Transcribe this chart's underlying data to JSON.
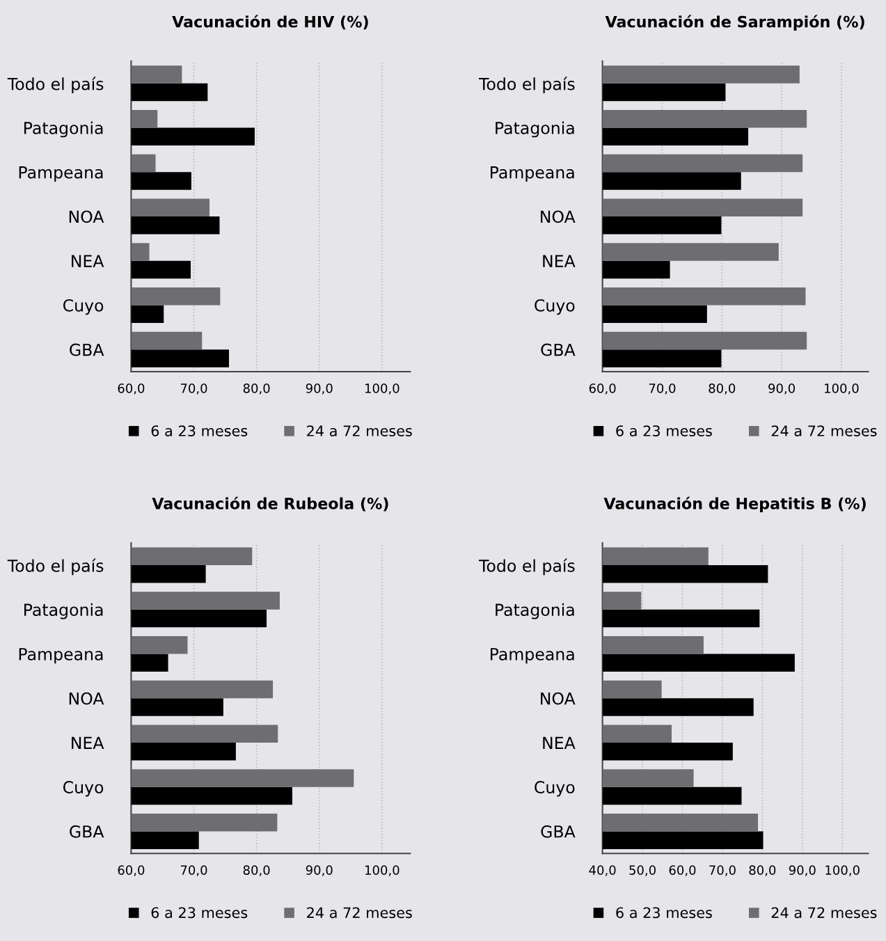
{
  "chart_data": [
    {
      "type": "bar",
      "orientation": "horizontal",
      "title": "Vacunación de HIV (%)",
      "categories": [
        "Todo el país",
        "Patagonia",
        "Pampeana",
        "NOA",
        "NEA",
        "Cuyo",
        "GBA"
      ],
      "series": [
        {
          "name": "6 a 23 meses",
          "color": "#000000",
          "values": [
            72.2,
            79.7,
            69.6,
            74.1,
            69.5,
            65.2,
            75.6
          ]
        },
        {
          "name": "24 a 72 meses",
          "color": "#6e6e72",
          "values": [
            68.1,
            64.2,
            63.9,
            72.5,
            62.9,
            74.2,
            71.3
          ]
        }
      ],
      "xlim": [
        60,
        104.5
      ],
      "xticks": [
        {
          "value": 60,
          "label": "60,0"
        },
        {
          "value": 70,
          "label": "70,0"
        },
        {
          "value": 80,
          "label": "80,0"
        },
        {
          "value": 90,
          "label": "90,0"
        },
        {
          "value": 100,
          "label": "100,0"
        }
      ],
      "grid": "x",
      "legend": "bottom"
    },
    {
      "type": "bar",
      "orientation": "horizontal",
      "title": "Vacunación de Sarampión (%)",
      "categories": [
        "Todo el país",
        "Patagonia",
        "Pampeana",
        "NOA",
        "NEA",
        "Cuyo",
        "GBA"
      ],
      "series": [
        {
          "name": "6 a 23 meses",
          "color": "#000000",
          "values": [
            80.6,
            84.4,
            83.2,
            79.9,
            71.3,
            77.5,
            79.9
          ]
        },
        {
          "name": "24 a 72 meses",
          "color": "#6e6e72",
          "values": [
            93.0,
            94.2,
            93.5,
            93.5,
            89.5,
            94.0,
            94.2
          ]
        }
      ],
      "xlim": [
        60,
        104.5
      ],
      "xticks": [
        {
          "value": 60,
          "label": "60,0"
        },
        {
          "value": 70,
          "label": "70,0"
        },
        {
          "value": 80,
          "label": "80,0"
        },
        {
          "value": 90,
          "label": "90,0"
        },
        {
          "value": 100,
          "label": "100,0"
        }
      ],
      "grid": "x",
      "legend": "bottom"
    },
    {
      "type": "bar",
      "orientation": "horizontal",
      "title": "Vacunación de Rubeola (%)",
      "categories": [
        "Todo el país",
        "Patagonia",
        "Pampeana",
        "NOA",
        "NEA",
        "Cuyo",
        "GBA"
      ],
      "series": [
        {
          "name": "6 a 23 meses",
          "color": "#000000",
          "values": [
            71.9,
            81.6,
            65.9,
            74.7,
            76.7,
            85.7,
            70.8
          ]
        },
        {
          "name": "24 a 72 meses",
          "color": "#6e6e72",
          "values": [
            79.3,
            83.7,
            69.0,
            82.6,
            83.4,
            95.5,
            83.3
          ]
        }
      ],
      "xlim": [
        60,
        104.5
      ],
      "xticks": [
        {
          "value": 60,
          "label": "60,0"
        },
        {
          "value": 70,
          "label": "70,0"
        },
        {
          "value": 80,
          "label": "80,0"
        },
        {
          "value": 90,
          "label": "90,0"
        },
        {
          "value": 100,
          "label": "100,0"
        }
      ],
      "grid": "x",
      "legend": "bottom"
    },
    {
      "type": "bar",
      "orientation": "horizontal",
      "title": "Vacunación de Hepatitis B (%)",
      "categories": [
        "Todo el país",
        "Patagonia",
        "Pampeana",
        "NOA",
        "NEA",
        "Cuyo",
        "GBA"
      ],
      "series": [
        {
          "name": "6 a 23 meses",
          "color": "#000000",
          "values": [
            81.4,
            79.3,
            88.1,
            77.8,
            72.6,
            74.8,
            80.2
          ]
        },
        {
          "name": "24 a 72 meses",
          "color": "#6e6e72",
          "values": [
            66.5,
            49.7,
            65.3,
            54.8,
            57.3,
            62.8,
            78.9
          ]
        }
      ],
      "xlim": [
        40,
        106.5
      ],
      "xticks": [
        {
          "value": 40,
          "label": "40,0"
        },
        {
          "value": 50,
          "label": "50,0"
        },
        {
          "value": 60,
          "label": "60,0"
        },
        {
          "value": 70,
          "label": "70,0"
        },
        {
          "value": 80,
          "label": "80,0"
        },
        {
          "value": 90,
          "label": "90,0"
        },
        {
          "value": 100,
          "label": "100,0"
        }
      ],
      "grid": "x",
      "legend": "bottom"
    }
  ]
}
